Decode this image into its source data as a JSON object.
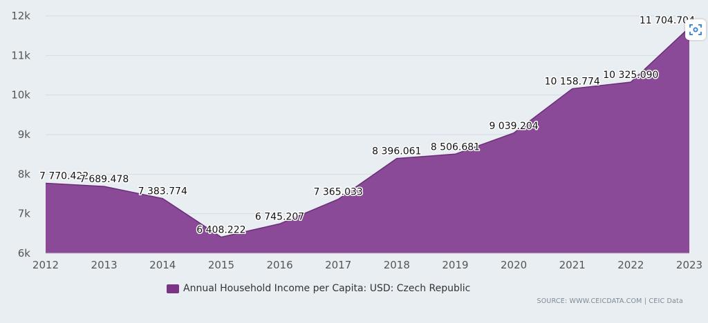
{
  "chart_data": {
    "type": "area",
    "x": [
      "2012",
      "2013",
      "2014",
      "2015",
      "2016",
      "2017",
      "2018",
      "2019",
      "2020",
      "2021",
      "2022",
      "2023"
    ],
    "series": [
      {
        "name": "Annual Household Income per Capita: USD: Czech Republic",
        "values": [
          7770.422,
          7689.478,
          7383.774,
          6408.222,
          6745.207,
          7365.033,
          8396.061,
          8506.681,
          9039.204,
          10158.774,
          10325.09,
          11704.704
        ],
        "labels": [
          "7 770.422",
          "7 689.478",
          "7 383.774",
          "6 408.222",
          "6 745.207",
          "7 365.033",
          "8 396.061",
          "8 506.681",
          "9 039.204",
          "10 158.774",
          "10 325.090",
          "11 704.704"
        ]
      }
    ],
    "y_ticks": [
      "6k",
      "7k",
      "8k",
      "9k",
      "10k",
      "11k",
      "12k"
    ],
    "ylim": [
      6000,
      12000
    ],
    "grid": true,
    "legend_position": "bottom-left"
  },
  "colors": {
    "series_fill": "#8b4a97",
    "series_line": "#6a2e78",
    "legend_swatch": "#7b3386",
    "background": "#e9eef2"
  },
  "legend": {
    "label": "Annual Household Income per Capita: USD: Czech Republic"
  },
  "source": {
    "text": "SOURCE: WWW.CEICDATA.COM | CEIC Data"
  },
  "toolbar": {
    "icon": "scan-icon"
  }
}
